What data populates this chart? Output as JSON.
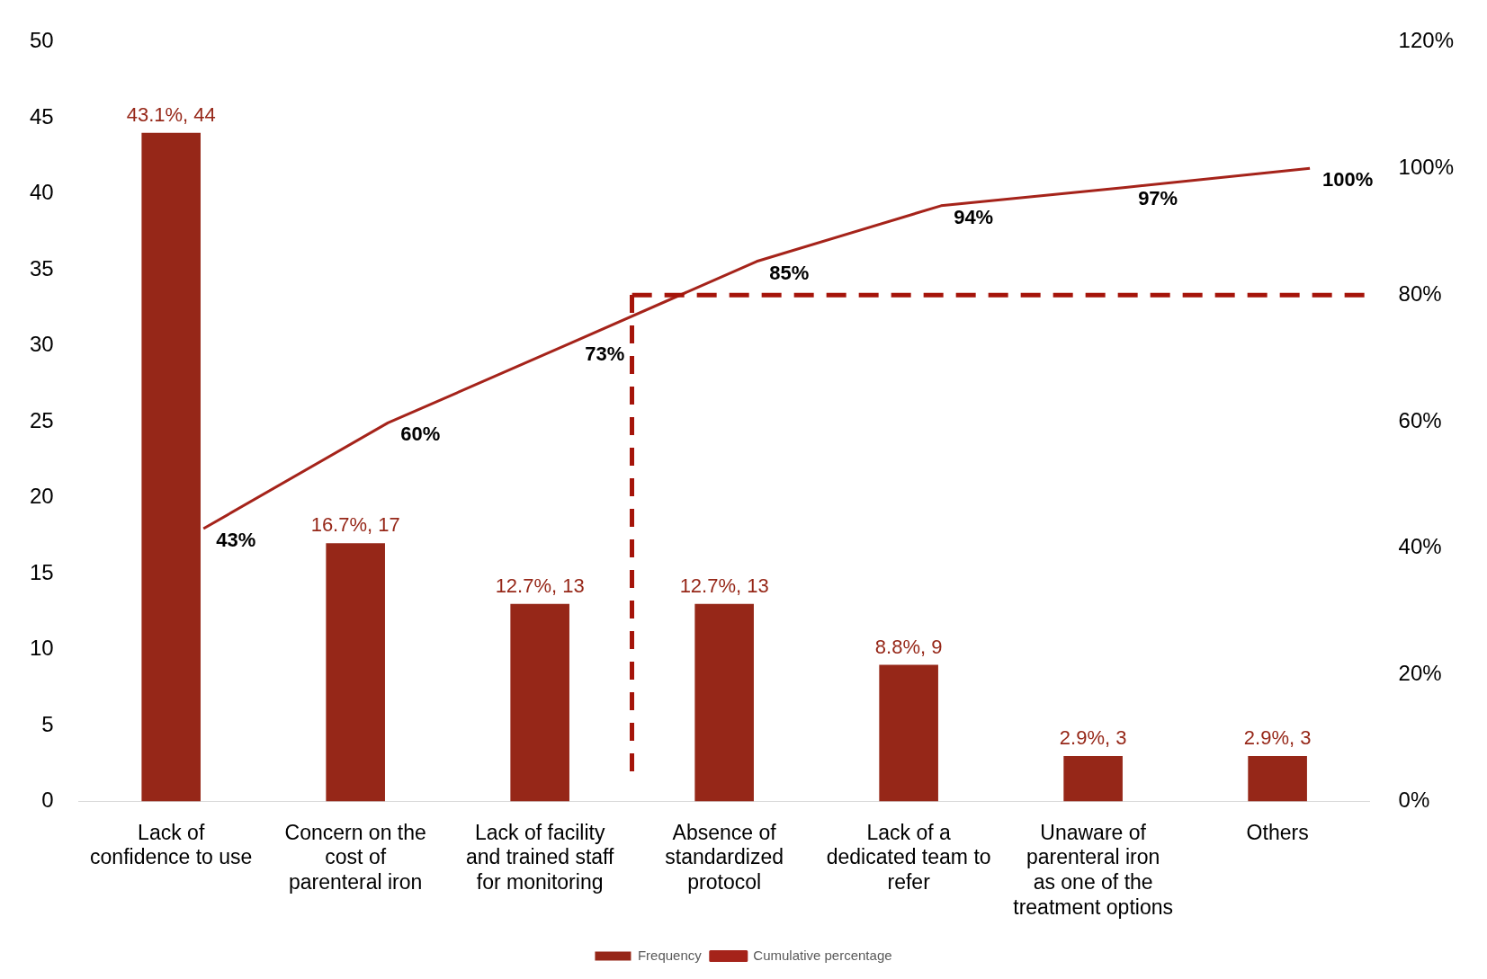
{
  "chart_data": {
    "type": "bar",
    "categories": [
      "Lack of confidence to use",
      "Concern on the cost of parenteral iron",
      "Lack of facility and trained staff for monitoring",
      "Absence of standardized protocol",
      "Lack of a dedicated team to refer",
      "Unaware of parenteral iron as one of the treatment options",
      "Others"
    ],
    "series": [
      {
        "name": "Frequency",
        "color": "#962718",
        "values": [
          44,
          17,
          13,
          13,
          9,
          3,
          3
        ],
        "value_labels": [
          "43.1%, 44",
          "16.7%, 17",
          "12.7%, 13",
          "12.7%, 13",
          "8.8%, 9",
          "2.9%, 3",
          "2.9%, 3"
        ]
      },
      {
        "name": "Cumulative percentage",
        "type": "line",
        "axis": "y2",
        "color": "#a5231a",
        "marker": "none",
        "values": [
          43.1,
          59.8,
          72.5,
          85.3,
          94.1,
          97.0,
          100
        ],
        "value_labels": [
          "43%",
          "60%",
          "73%",
          "85%",
          "94%",
          "97%",
          "100%"
        ]
      }
    ],
    "ylim": [
      0,
      50
    ],
    "yticks": [
      0,
      5,
      10,
      15,
      20,
      25,
      30,
      35,
      40,
      45,
      50
    ],
    "y2lim": [
      0,
      120
    ],
    "y2ticks": [
      {
        "value": 0,
        "label": "0%"
      },
      {
        "value": 20,
        "label": "20%"
      },
      {
        "value": 40,
        "label": "40%"
      },
      {
        "value": 60,
        "label": "60%"
      },
      {
        "value": 80,
        "label": "80%"
      },
      {
        "value": 100,
        "label": "100%"
      },
      {
        "value": 120,
        "label": "120%"
      }
    ],
    "ref_lines": [
      {
        "axis": "y2",
        "value": 80,
        "color": "#a5140a",
        "line_style": "dashed"
      }
    ],
    "grid": false,
    "legend": "bottom"
  }
}
